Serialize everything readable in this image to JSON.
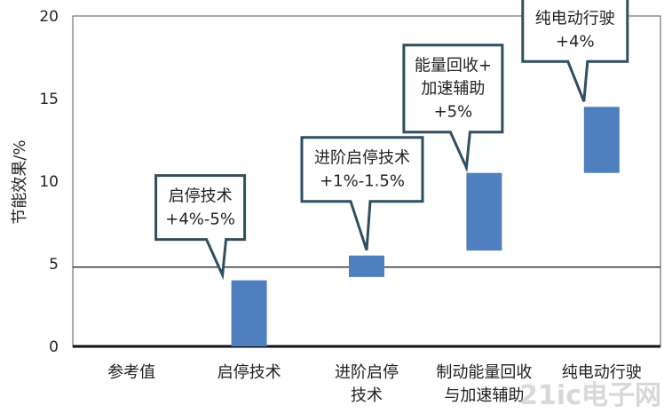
{
  "chart_data": {
    "type": "bar",
    "ylabel": "节能效果/%",
    "ylim": [
      0,
      20
    ],
    "yticks": [
      0,
      5,
      10,
      15,
      20
    ],
    "reference_line": 4.8,
    "categories": [
      [
        "参考值"
      ],
      [
        "启停技术"
      ],
      [
        "进阶启停",
        "技术"
      ],
      [
        "制动能量回收",
        "与加速辅助"
      ],
      [
        "纯电动行驶"
      ]
    ],
    "bars": [
      {
        "low": 0,
        "high": 0
      },
      {
        "low": 0,
        "high": 4.0
      },
      {
        "low": 4.2,
        "high": 5.5
      },
      {
        "low": 5.8,
        "high": 10.5
      },
      {
        "low": 10.5,
        "high": 14.5
      }
    ],
    "callouts": [
      {
        "bar": 1,
        "lines": [
          "启停技术",
          "+4%-5%"
        ]
      },
      {
        "bar": 2,
        "lines": [
          "进阶启停技术",
          "+1%-1.5%"
        ]
      },
      {
        "bar": 3,
        "lines": [
          "能量回收+",
          "加速辅助",
          "+5%"
        ]
      },
      {
        "bar": 4,
        "lines": [
          "纯电动行驶",
          "+4%"
        ]
      }
    ],
    "bar_color": "#4f7fbf",
    "callout_border": "#2f4f5f"
  },
  "watermark": "21ic电子网"
}
